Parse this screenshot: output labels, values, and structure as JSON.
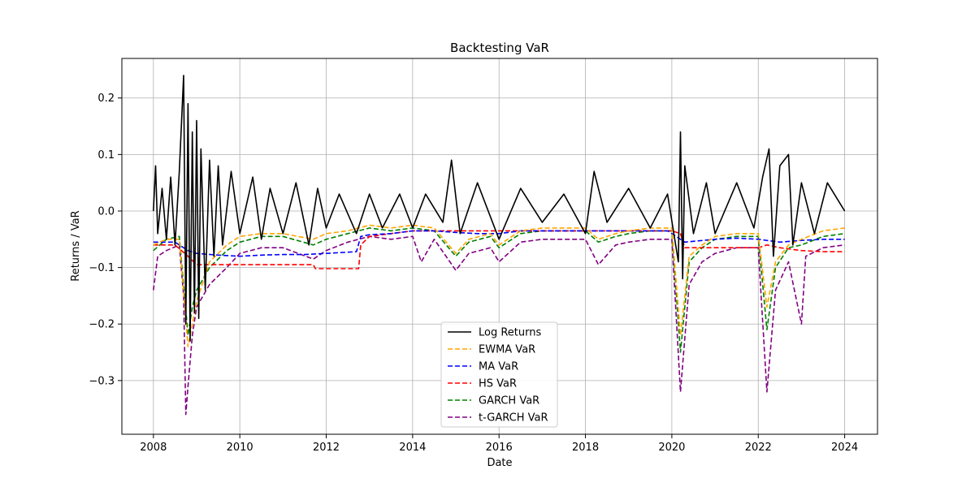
{
  "chart_data": {
    "type": "line",
    "title": "Backtesting VaR",
    "xlabel": "Date",
    "ylabel": "Returns / VaR",
    "xlim": [
      2007.27,
      2024.76
    ],
    "ylim": [
      -0.395,
      0.27
    ],
    "xticks": [
      2008,
      2010,
      2012,
      2014,
      2016,
      2018,
      2020,
      2022,
      2024
    ],
    "xtick_labels": [
      "2008",
      "2010",
      "2012",
      "2014",
      "2016",
      "2018",
      "2020",
      "2022",
      "2024"
    ],
    "yticks": [
      0.2,
      0.1,
      0.0,
      -0.1,
      -0.2,
      -0.3
    ],
    "ytick_labels": [
      "0.2",
      "0.1",
      "0.0",
      "−0.1",
      "−0.2",
      "−0.3"
    ],
    "grid": true,
    "legend_position": "lower-center",
    "series": [
      {
        "name": "Log Returns",
        "style": "solid",
        "color": "#000000",
        "points": [
          [
            2008.0,
            0.0
          ],
          [
            2008.05,
            0.08
          ],
          [
            2008.1,
            -0.04
          ],
          [
            2008.2,
            0.04
          ],
          [
            2008.3,
            -0.05
          ],
          [
            2008.4,
            0.06
          ],
          [
            2008.5,
            -0.06
          ],
          [
            2008.6,
            0.07
          ],
          [
            2008.7,
            0.24
          ],
          [
            2008.75,
            -0.2
          ],
          [
            2008.8,
            0.19
          ],
          [
            2008.85,
            -0.23
          ],
          [
            2008.9,
            0.14
          ],
          [
            2008.95,
            -0.18
          ],
          [
            2009.0,
            0.16
          ],
          [
            2009.05,
            -0.19
          ],
          [
            2009.1,
            0.11
          ],
          [
            2009.2,
            -0.14
          ],
          [
            2009.3,
            0.09
          ],
          [
            2009.4,
            -0.08
          ],
          [
            2009.5,
            0.08
          ],
          [
            2009.6,
            -0.06
          ],
          [
            2009.8,
            0.07
          ],
          [
            2010.0,
            -0.04
          ],
          [
            2010.3,
            0.06
          ],
          [
            2010.5,
            -0.05
          ],
          [
            2010.7,
            0.04
          ],
          [
            2011.0,
            -0.04
          ],
          [
            2011.3,
            0.05
          ],
          [
            2011.6,
            -0.06
          ],
          [
            2011.8,
            0.04
          ],
          [
            2012.0,
            -0.03
          ],
          [
            2012.3,
            0.03
          ],
          [
            2012.7,
            -0.04
          ],
          [
            2013.0,
            0.03
          ],
          [
            2013.3,
            -0.03
          ],
          [
            2013.7,
            0.03
          ],
          [
            2014.0,
            -0.03
          ],
          [
            2014.3,
            0.03
          ],
          [
            2014.7,
            -0.02
          ],
          [
            2014.9,
            0.09
          ],
          [
            2015.1,
            -0.04
          ],
          [
            2015.5,
            0.05
          ],
          [
            2016.0,
            -0.05
          ],
          [
            2016.5,
            0.04
          ],
          [
            2017.0,
            -0.02
          ],
          [
            2017.5,
            0.03
          ],
          [
            2018.0,
            -0.04
          ],
          [
            2018.2,
            0.07
          ],
          [
            2018.5,
            -0.02
          ],
          [
            2019.0,
            0.04
          ],
          [
            2019.5,
            -0.03
          ],
          [
            2019.9,
            0.03
          ],
          [
            2020.15,
            -0.09
          ],
          [
            2020.2,
            0.14
          ],
          [
            2020.25,
            -0.12
          ],
          [
            2020.3,
            0.08
          ],
          [
            2020.5,
            -0.04
          ],
          [
            2020.8,
            0.05
          ],
          [
            2021.0,
            -0.04
          ],
          [
            2021.5,
            0.05
          ],
          [
            2021.9,
            -0.03
          ],
          [
            2022.1,
            0.06
          ],
          [
            2022.25,
            0.11
          ],
          [
            2022.35,
            -0.08
          ],
          [
            2022.5,
            0.08
          ],
          [
            2022.7,
            0.1
          ],
          [
            2022.8,
            -0.06
          ],
          [
            2023.0,
            0.05
          ],
          [
            2023.3,
            -0.04
          ],
          [
            2023.6,
            0.05
          ],
          [
            2024.0,
            0.0
          ]
        ]
      },
      {
        "name": "EWMA VaR",
        "style": "dashed",
        "color": "#ffa500",
        "points": [
          [
            2008.0,
            -0.06
          ],
          [
            2008.3,
            -0.05
          ],
          [
            2008.6,
            -0.05
          ],
          [
            2008.8,
            -0.24
          ],
          [
            2009.0,
            -0.16
          ],
          [
            2009.3,
            -0.09
          ],
          [
            2009.7,
            -0.06
          ],
          [
            2010.0,
            -0.045
          ],
          [
            2010.5,
            -0.04
          ],
          [
            2011.0,
            -0.04
          ],
          [
            2011.7,
            -0.05
          ],
          [
            2012.0,
            -0.04
          ],
          [
            2012.5,
            -0.035
          ],
          [
            2013.0,
            -0.025
          ],
          [
            2013.5,
            -0.03
          ],
          [
            2014.0,
            -0.025
          ],
          [
            2014.5,
            -0.03
          ],
          [
            2015.0,
            -0.075
          ],
          [
            2015.3,
            -0.05
          ],
          [
            2015.8,
            -0.04
          ],
          [
            2016.0,
            -0.06
          ],
          [
            2016.5,
            -0.035
          ],
          [
            2017.0,
            -0.03
          ],
          [
            2017.5,
            -0.03
          ],
          [
            2018.0,
            -0.03
          ],
          [
            2018.3,
            -0.05
          ],
          [
            2018.7,
            -0.04
          ],
          [
            2019.0,
            -0.035
          ],
          [
            2019.5,
            -0.03
          ],
          [
            2020.0,
            -0.03
          ],
          [
            2020.2,
            -0.22
          ],
          [
            2020.4,
            -0.08
          ],
          [
            2020.7,
            -0.06
          ],
          [
            2021.0,
            -0.045
          ],
          [
            2021.5,
            -0.04
          ],
          [
            2022.0,
            -0.04
          ],
          [
            2022.2,
            -0.17
          ],
          [
            2022.4,
            -0.09
          ],
          [
            2022.7,
            -0.06
          ],
          [
            2023.0,
            -0.05
          ],
          [
            2023.5,
            -0.035
          ],
          [
            2024.0,
            -0.03
          ]
        ]
      },
      {
        "name": "MA VaR",
        "style": "dashed",
        "color": "#0000ff",
        "points": [
          [
            2008.0,
            -0.055
          ],
          [
            2008.5,
            -0.055
          ],
          [
            2008.8,
            -0.07
          ],
          [
            2009.0,
            -0.075
          ],
          [
            2009.5,
            -0.078
          ],
          [
            2010.0,
            -0.08
          ],
          [
            2010.5,
            -0.078
          ],
          [
            2011.0,
            -0.077
          ],
          [
            2011.5,
            -0.077
          ],
          [
            2012.0,
            -0.075
          ],
          [
            2012.7,
            -0.072
          ],
          [
            2012.8,
            -0.045
          ],
          [
            2013.0,
            -0.042
          ],
          [
            2013.5,
            -0.04
          ],
          [
            2014.0,
            -0.035
          ],
          [
            2014.5,
            -0.035
          ],
          [
            2015.0,
            -0.038
          ],
          [
            2015.5,
            -0.04
          ],
          [
            2016.0,
            -0.04
          ],
          [
            2016.5,
            -0.035
          ],
          [
            2017.0,
            -0.035
          ],
          [
            2018.0,
            -0.035
          ],
          [
            2019.0,
            -0.035
          ],
          [
            2019.9,
            -0.035
          ],
          [
            2020.0,
            -0.04
          ],
          [
            2020.3,
            -0.055
          ],
          [
            2021.0,
            -0.05
          ],
          [
            2021.5,
            -0.048
          ],
          [
            2022.0,
            -0.05
          ],
          [
            2022.5,
            -0.055
          ],
          [
            2023.0,
            -0.052
          ],
          [
            2023.5,
            -0.05
          ],
          [
            2024.0,
            -0.05
          ]
        ]
      },
      {
        "name": "HS VaR",
        "style": "dashed",
        "color": "#ff0000",
        "points": [
          [
            2008.0,
            -0.06
          ],
          [
            2008.5,
            -0.06
          ],
          [
            2008.8,
            -0.08
          ],
          [
            2009.0,
            -0.095
          ],
          [
            2010.0,
            -0.095
          ],
          [
            2011.0,
            -0.095
          ],
          [
            2011.7,
            -0.095
          ],
          [
            2011.75,
            -0.102
          ],
          [
            2012.5,
            -0.102
          ],
          [
            2012.75,
            -0.102
          ],
          [
            2012.8,
            -0.06
          ],
          [
            2013.0,
            -0.045
          ],
          [
            2013.5,
            -0.04
          ],
          [
            2014.0,
            -0.035
          ],
          [
            2015.0,
            -0.035
          ],
          [
            2016.0,
            -0.035
          ],
          [
            2017.0,
            -0.035
          ],
          [
            2018.0,
            -0.035
          ],
          [
            2019.0,
            -0.035
          ],
          [
            2020.0,
            -0.035
          ],
          [
            2020.2,
            -0.04
          ],
          [
            2020.3,
            -0.065
          ],
          [
            2021.0,
            -0.065
          ],
          [
            2022.0,
            -0.065
          ],
          [
            2022.2,
            -0.06
          ],
          [
            2022.5,
            -0.065
          ],
          [
            2023.0,
            -0.07
          ],
          [
            2023.5,
            -0.072
          ],
          [
            2024.0,
            -0.072
          ]
        ]
      },
      {
        "name": "GARCH VaR",
        "style": "dashed",
        "color": "#008000",
        "points": [
          [
            2008.0,
            -0.07
          ],
          [
            2008.3,
            -0.05
          ],
          [
            2008.6,
            -0.045
          ],
          [
            2008.8,
            -0.22
          ],
          [
            2008.9,
            -0.17
          ],
          [
            2009.0,
            -0.14
          ],
          [
            2009.3,
            -0.1
          ],
          [
            2009.7,
            -0.07
          ],
          [
            2010.0,
            -0.055
          ],
          [
            2010.5,
            -0.045
          ],
          [
            2011.0,
            -0.045
          ],
          [
            2011.7,
            -0.06
          ],
          [
            2012.0,
            -0.05
          ],
          [
            2012.5,
            -0.04
          ],
          [
            2013.0,
            -0.03
          ],
          [
            2013.5,
            -0.035
          ],
          [
            2014.0,
            -0.03
          ],
          [
            2014.5,
            -0.035
          ],
          [
            2015.0,
            -0.08
          ],
          [
            2015.3,
            -0.055
          ],
          [
            2015.8,
            -0.045
          ],
          [
            2016.0,
            -0.065
          ],
          [
            2016.5,
            -0.04
          ],
          [
            2017.0,
            -0.035
          ],
          [
            2018.0,
            -0.035
          ],
          [
            2018.3,
            -0.055
          ],
          [
            2018.7,
            -0.045
          ],
          [
            2019.0,
            -0.04
          ],
          [
            2019.5,
            -0.035
          ],
          [
            2020.0,
            -0.035
          ],
          [
            2020.2,
            -0.25
          ],
          [
            2020.4,
            -0.09
          ],
          [
            2020.7,
            -0.065
          ],
          [
            2021.0,
            -0.05
          ],
          [
            2021.5,
            -0.045
          ],
          [
            2022.0,
            -0.045
          ],
          [
            2022.2,
            -0.21
          ],
          [
            2022.4,
            -0.1
          ],
          [
            2022.7,
            -0.065
          ],
          [
            2023.0,
            -0.06
          ],
          [
            2023.5,
            -0.045
          ],
          [
            2024.0,
            -0.04
          ]
        ]
      },
      {
        "name": "t-GARCH VaR",
        "style": "dashed",
        "color": "#800080",
        "points": [
          [
            2008.0,
            -0.14
          ],
          [
            2008.1,
            -0.08
          ],
          [
            2008.3,
            -0.07
          ],
          [
            2008.6,
            -0.06
          ],
          [
            2008.7,
            -0.15
          ],
          [
            2008.75,
            -0.36
          ],
          [
            2008.8,
            -0.31
          ],
          [
            2008.9,
            -0.22
          ],
          [
            2009.0,
            -0.17
          ],
          [
            2009.3,
            -0.13
          ],
          [
            2009.7,
            -0.1
          ],
          [
            2010.0,
            -0.075
          ],
          [
            2010.5,
            -0.065
          ],
          [
            2011.0,
            -0.065
          ],
          [
            2011.7,
            -0.085
          ],
          [
            2012.0,
            -0.07
          ],
          [
            2012.5,
            -0.055
          ],
          [
            2013.0,
            -0.045
          ],
          [
            2013.5,
            -0.05
          ],
          [
            2014.0,
            -0.045
          ],
          [
            2014.2,
            -0.09
          ],
          [
            2014.5,
            -0.05
          ],
          [
            2015.0,
            -0.105
          ],
          [
            2015.3,
            -0.075
          ],
          [
            2015.8,
            -0.065
          ],
          [
            2016.0,
            -0.09
          ],
          [
            2016.5,
            -0.055
          ],
          [
            2017.0,
            -0.05
          ],
          [
            2018.0,
            -0.05
          ],
          [
            2018.3,
            -0.095
          ],
          [
            2018.7,
            -0.06
          ],
          [
            2019.0,
            -0.055
          ],
          [
            2019.5,
            -0.05
          ],
          [
            2020.0,
            -0.05
          ],
          [
            2020.2,
            -0.32
          ],
          [
            2020.4,
            -0.13
          ],
          [
            2020.7,
            -0.09
          ],
          [
            2021.0,
            -0.075
          ],
          [
            2021.5,
            -0.065
          ],
          [
            2022.0,
            -0.065
          ],
          [
            2022.2,
            -0.32
          ],
          [
            2022.4,
            -0.14
          ],
          [
            2022.7,
            -0.09
          ],
          [
            2023.0,
            -0.2
          ],
          [
            2023.1,
            -0.08
          ],
          [
            2023.5,
            -0.065
          ],
          [
            2024.0,
            -0.06
          ]
        ]
      }
    ]
  }
}
